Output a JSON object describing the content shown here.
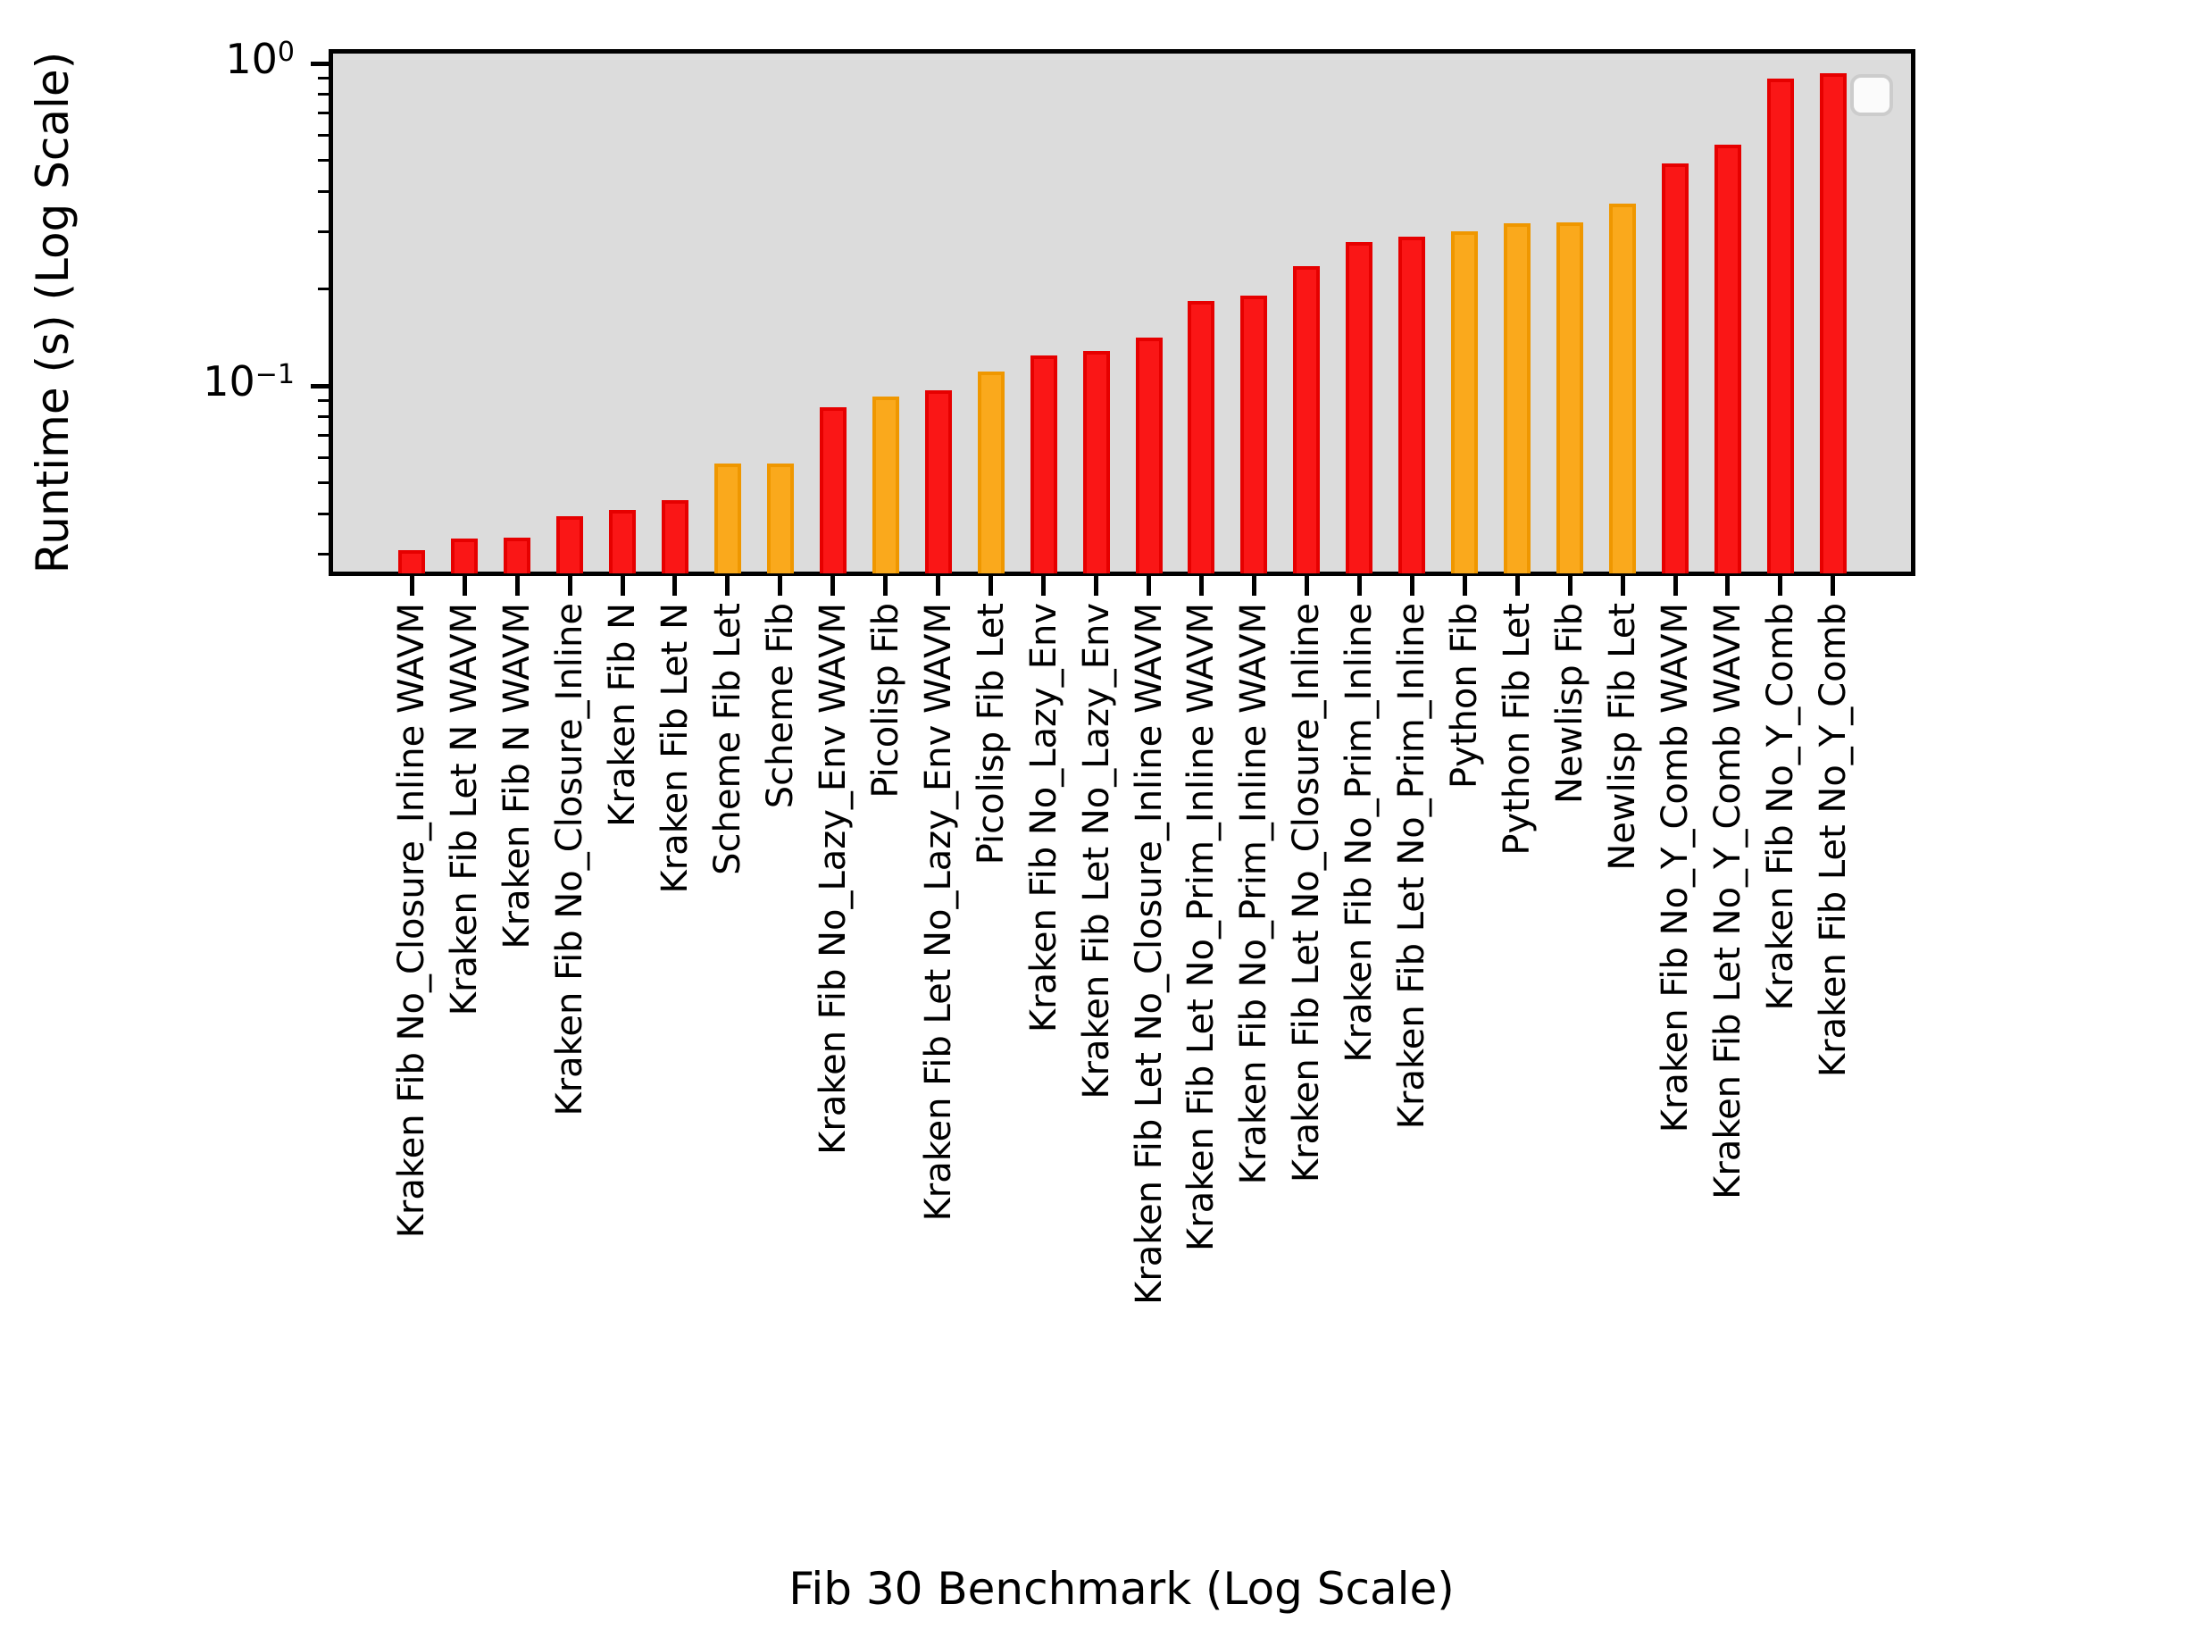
{
  "palette": {
    "red": {
      "fill": "#fa1616",
      "edge": "#e60000"
    },
    "orange": {
      "fill": "#faa91c",
      "edge": "#ef9700"
    },
    "plot_background": "#dcdcdc",
    "figure_background": "#ffffff",
    "axis_color": "#000000"
  },
  "chart_data": {
    "type": "bar",
    "title": "",
    "xlabel": "Fib 30 Benchmark (Log Scale)",
    "ylabel": "Runtime (s) (Log Scale)",
    "yscale": "log",
    "ylim": [
      0.026,
      1.11
    ],
    "grid": false,
    "legend": "empty rounded box, top-right",
    "y_ticks": [
      {
        "base": "10",
        "exp": "0",
        "value": 1.0
      },
      {
        "base": "10",
        "exp": "−1",
        "value": 0.1
      }
    ],
    "categories": [
      "Kraken Fib No_Closure_Inline WAVM",
      "Kraken Fib Let N WAVM",
      "Kraken Fib N WAVM",
      "Kraken Fib No_Closure_Inline",
      "Kraken Fib N",
      "Kraken Fib Let N",
      "Scheme Fib Let",
      "Scheme Fib",
      "Kraken Fib No_Lazy_Env WAVM",
      "Picolisp Fib",
      "Kraken Fib Let No_Lazy_Env WAVM",
      "Picolisp Fib Let",
      "Kraken Fib No_Lazy_Env",
      "Kraken Fib Let No_Lazy_Env",
      "Kraken Fib Let No_Closure_Inline WAVM",
      "Kraken Fib Let No_Prim_Inline WAVM",
      "Kraken Fib No_Prim_Inline WAVM",
      "Kraken Fib Let No_Closure_Inline",
      "Kraken Fib No_Prim_Inline",
      "Kraken Fib Let No_Prim_Inline",
      "Python Fib",
      "Python Fib Let",
      "Newlisp Fib",
      "Newlisp Fib Let",
      "Kraken Fib No_Y_Comb WAVM",
      "Kraken Fib Let No_Y_Comb WAVM",
      "Kraken Fib No_Y_Comb",
      "Kraken Fib Let No_Y_Comb"
    ],
    "values": [
      0.031,
      0.0335,
      0.0338,
      0.0394,
      0.0413,
      0.0442,
      0.0573,
      0.0573,
      0.086,
      0.0924,
      0.0971,
      0.111,
      0.124,
      0.128,
      0.141,
      0.183,
      0.191,
      0.235,
      0.279,
      0.291,
      0.302,
      0.319,
      0.321,
      0.367,
      0.489,
      0.56,
      0.899,
      0.934
    ],
    "colors": [
      "red",
      "red",
      "red",
      "red",
      "red",
      "red",
      "orange",
      "orange",
      "red",
      "orange",
      "red",
      "orange",
      "red",
      "red",
      "red",
      "red",
      "red",
      "red",
      "red",
      "red",
      "orange",
      "orange",
      "orange",
      "orange",
      "red",
      "red",
      "red",
      "red"
    ]
  }
}
